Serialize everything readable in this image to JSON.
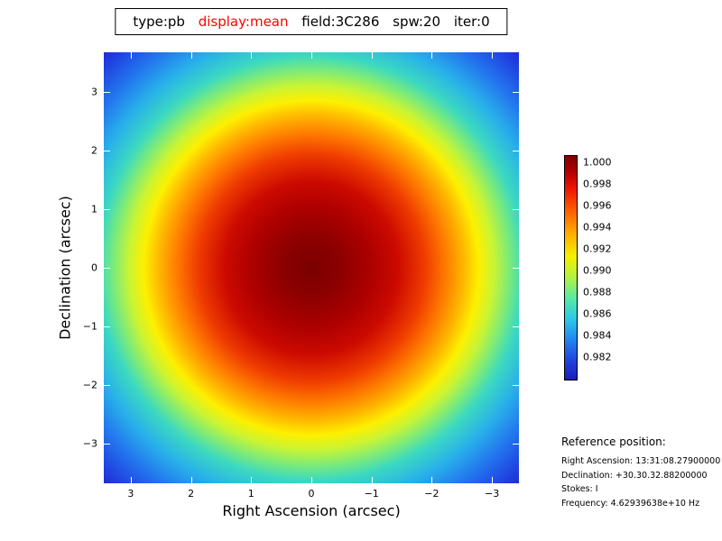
{
  "title_bar": {
    "segments": [
      {
        "text": "type:pb",
        "color": "#000000"
      },
      {
        "text": "display:mean",
        "color": "#ff0000"
      },
      {
        "text": "field:3C286",
        "color": "#000000"
      },
      {
        "text": "spw:20",
        "color": "#000000"
      },
      {
        "text": "iter:0",
        "color": "#000000"
      }
    ]
  },
  "chart_data": {
    "type": "heatmap",
    "title": "type:pb display:mean field:3C286 spw:20 iter:0",
    "xlabel": "Right Ascension (arcsec)",
    "ylabel": "Declination (arcsec)",
    "x_ticks": [
      "3",
      "2",
      "1",
      "0",
      "−1",
      "−2",
      "−3"
    ],
    "y_ticks": [
      "3",
      "2",
      "1",
      "0",
      "−1",
      "−2",
      "−3"
    ],
    "xlim": [
      3.5,
      -3.5
    ],
    "ylim": [
      -3.6,
      3.6
    ],
    "colormap": "jet",
    "description": "Radially symmetric primary-beam mean response peaking at 1.000 at the field center (0,0) and falling to about 0.981 at the plot corners",
    "radial_profile": {
      "radius_arcsec": [
        0,
        1,
        2,
        3,
        3.5,
        4.9
      ],
      "value": [
        1.0,
        0.999,
        0.995,
        0.989,
        0.986,
        0.981
      ]
    },
    "colorbar": {
      "labels": [
        "1.000",
        "0.998",
        "0.996",
        "0.994",
        "0.992",
        "0.990",
        "0.988",
        "0.986",
        "0.984",
        "0.982"
      ],
      "top_color": "#7f0000",
      "bottom_color": "#1c1cb8"
    },
    "legend_position": "right"
  },
  "reference": {
    "heading": "Reference position:",
    "lines": [
      "Right Ascension: 13:31:08.27900000",
      "Declination: +30.30.32.88200000",
      "Stokes: I",
      "Frequency: 4.62939638e+10 Hz"
    ]
  }
}
